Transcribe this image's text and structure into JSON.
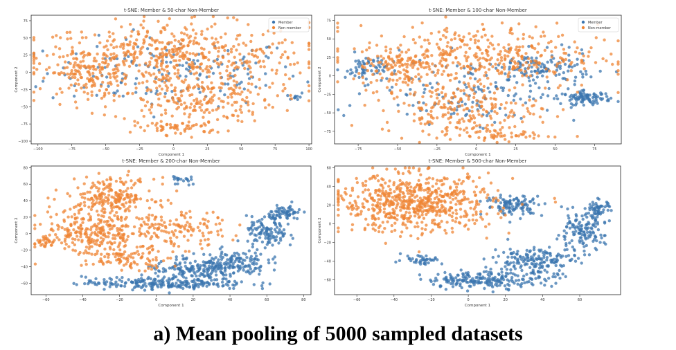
{
  "caption": "a) Mean pooling of 5000 sampled datasets",
  "colors": {
    "member": "#3b75af",
    "non_member": "#ef8636"
  },
  "chart_data": [
    {
      "type": "scatter",
      "title": "t-SNE: Member & 50-char Non-Member",
      "xlabel": "Component 1",
      "ylabel": "Component 2",
      "xlim": [
        -105,
        102
      ],
      "ylim": [
        -104,
        83
      ],
      "xticks": [
        -100,
        -75,
        -50,
        -25,
        0,
        25,
        50,
        75,
        100
      ],
      "yticks": [
        -100,
        -75,
        -50,
        -25,
        0,
        25,
        50,
        75
      ],
      "legend": {
        "entries": [
          "Member",
          "Non-member"
        ],
        "placement": "top-right"
      },
      "series": [
        {
          "name": "Member",
          "clusters": [
            {
              "cx": 0,
              "cy": 0,
              "rx": 85,
              "ry": 45,
              "count": 160
            },
            {
              "cx": 90,
              "cy": -35,
              "rx": 6,
              "ry": 6,
              "count": 10
            }
          ]
        },
        {
          "name": "Non-member",
          "clusters": [
            {
              "cx": 0,
              "cy": 22,
              "rx": 90,
              "ry": 45,
              "count": 520
            },
            {
              "cx": 15,
              "cy": -40,
              "rx": 55,
              "ry": 30,
              "count": 200
            },
            {
              "cx": 5,
              "cy": -80,
              "rx": 30,
              "ry": 10,
              "count": 60
            },
            {
              "cx": -65,
              "cy": 0,
              "rx": 25,
              "ry": 30,
              "count": 120
            }
          ]
        }
      ]
    },
    {
      "type": "scatter",
      "title": "t-SNE: Member & 100-char Non-Member",
      "xlabel": "Component 1",
      "ylabel": "Component 2",
      "xlim": [
        -90,
        92
      ],
      "ylim": [
        -92,
        82
      ],
      "xticks": [
        -75,
        -50,
        -25,
        0,
        25,
        50,
        75
      ],
      "yticks": [
        -75,
        -50,
        -25,
        0,
        25,
        50,
        75
      ],
      "legend": {
        "entries": [
          "Member",
          "Non-member"
        ],
        "placement": "top-right"
      },
      "series": [
        {
          "name": "Member",
          "clusters": [
            {
              "cx": 70,
              "cy": -30,
              "rx": 14,
              "ry": 8,
              "count": 90
            },
            {
              "cx": -70,
              "cy": 10,
              "rx": 12,
              "ry": 18,
              "count": 60
            },
            {
              "cx": 40,
              "cy": 10,
              "rx": 30,
              "ry": 20,
              "count": 120
            },
            {
              "cx": 0,
              "cy": -20,
              "rx": 60,
              "ry": 40,
              "count": 140
            }
          ]
        },
        {
          "name": "Non-member",
          "clusters": [
            {
              "cx": 0,
              "cy": 25,
              "rx": 70,
              "ry": 40,
              "count": 420
            },
            {
              "cx": -10,
              "cy": -45,
              "rx": 45,
              "ry": 30,
              "count": 200
            },
            {
              "cx": 10,
              "cy": -80,
              "rx": 35,
              "ry": 8,
              "count": 60
            },
            {
              "cx": -50,
              "cy": 10,
              "rx": 20,
              "ry": 25,
              "count": 90
            }
          ]
        }
      ]
    },
    {
      "type": "scatter",
      "title": "t-SNE: Member & 200-char Non-Member",
      "xlabel": "Component 1",
      "ylabel": "Component 2",
      "xlim": [
        -68,
        84
      ],
      "ylim": [
        -74,
        82
      ],
      "xticks": [
        -60,
        -40,
        -20,
        0,
        20,
        40,
        60,
        80
      ],
      "yticks": [
        -60,
        -40,
        -20,
        0,
        20,
        40,
        60,
        80
      ],
      "legend": null,
      "series": [
        {
          "name": "Member",
          "clusters": [
            {
              "cx": 5,
              "cy": -60,
              "rx": 40,
              "ry": 7,
              "count": 230
            },
            {
              "cx": 40,
              "cy": -35,
              "rx": 18,
              "ry": 14,
              "count": 150
            },
            {
              "cx": 60,
              "cy": 0,
              "rx": 10,
              "ry": 18,
              "count": 110
            },
            {
              "cx": 70,
              "cy": 25,
              "rx": 8,
              "ry": 9,
              "count": 70
            },
            {
              "cx": 20,
              "cy": -45,
              "rx": 25,
              "ry": 10,
              "count": 120
            },
            {
              "cx": 15,
              "cy": 65,
              "rx": 6,
              "ry": 6,
              "count": 20
            }
          ]
        },
        {
          "name": "Non-member",
          "clusters": [
            {
              "cx": -25,
              "cy": 45,
              "rx": 22,
              "ry": 20,
              "count": 220
            },
            {
              "cx": -35,
              "cy": 0,
              "rx": 25,
              "ry": 25,
              "count": 260
            },
            {
              "cx": 10,
              "cy": 5,
              "rx": 25,
              "ry": 20,
              "count": 140
            },
            {
              "cx": -15,
              "cy": -30,
              "rx": 20,
              "ry": 12,
              "count": 100
            },
            {
              "cx": -60,
              "cy": -10,
              "rx": 5,
              "ry": 6,
              "count": 20
            }
          ]
        }
      ]
    },
    {
      "type": "scatter",
      "title": "t-SNE: Member & 500-char Non-Member",
      "xlabel": "Component 1",
      "ylabel": "Component 2",
      "xlim": [
        -72,
        82
      ],
      "ylim": [
        -76,
        62
      ],
      "xticks": [
        -60,
        -40,
        -20,
        0,
        20,
        40,
        60
      ],
      "yticks": [
        -60,
        -40,
        -20,
        0,
        20,
        40,
        60
      ],
      "legend": null,
      "series": [
        {
          "name": "Member",
          "clusters": [
            {
              "cx": 10,
              "cy": -60,
              "rx": 30,
              "ry": 8,
              "count": 200
            },
            {
              "cx": 35,
              "cy": -40,
              "rx": 20,
              "ry": 14,
              "count": 170
            },
            {
              "cx": 60,
              "cy": -10,
              "rx": 12,
              "ry": 18,
              "count": 130
            },
            {
              "cx": 70,
              "cy": 15,
              "rx": 6,
              "ry": 10,
              "count": 60
            },
            {
              "cx": 25,
              "cy": 20,
              "rx": 14,
              "ry": 10,
              "count": 110
            },
            {
              "cx": -25,
              "cy": -38,
              "rx": 10,
              "ry": 5,
              "count": 40
            }
          ]
        },
        {
          "name": "Non-member",
          "clusters": [
            {
              "cx": -28,
              "cy": 22,
              "rx": 38,
              "ry": 28,
              "count": 650
            }
          ]
        }
      ]
    }
  ]
}
